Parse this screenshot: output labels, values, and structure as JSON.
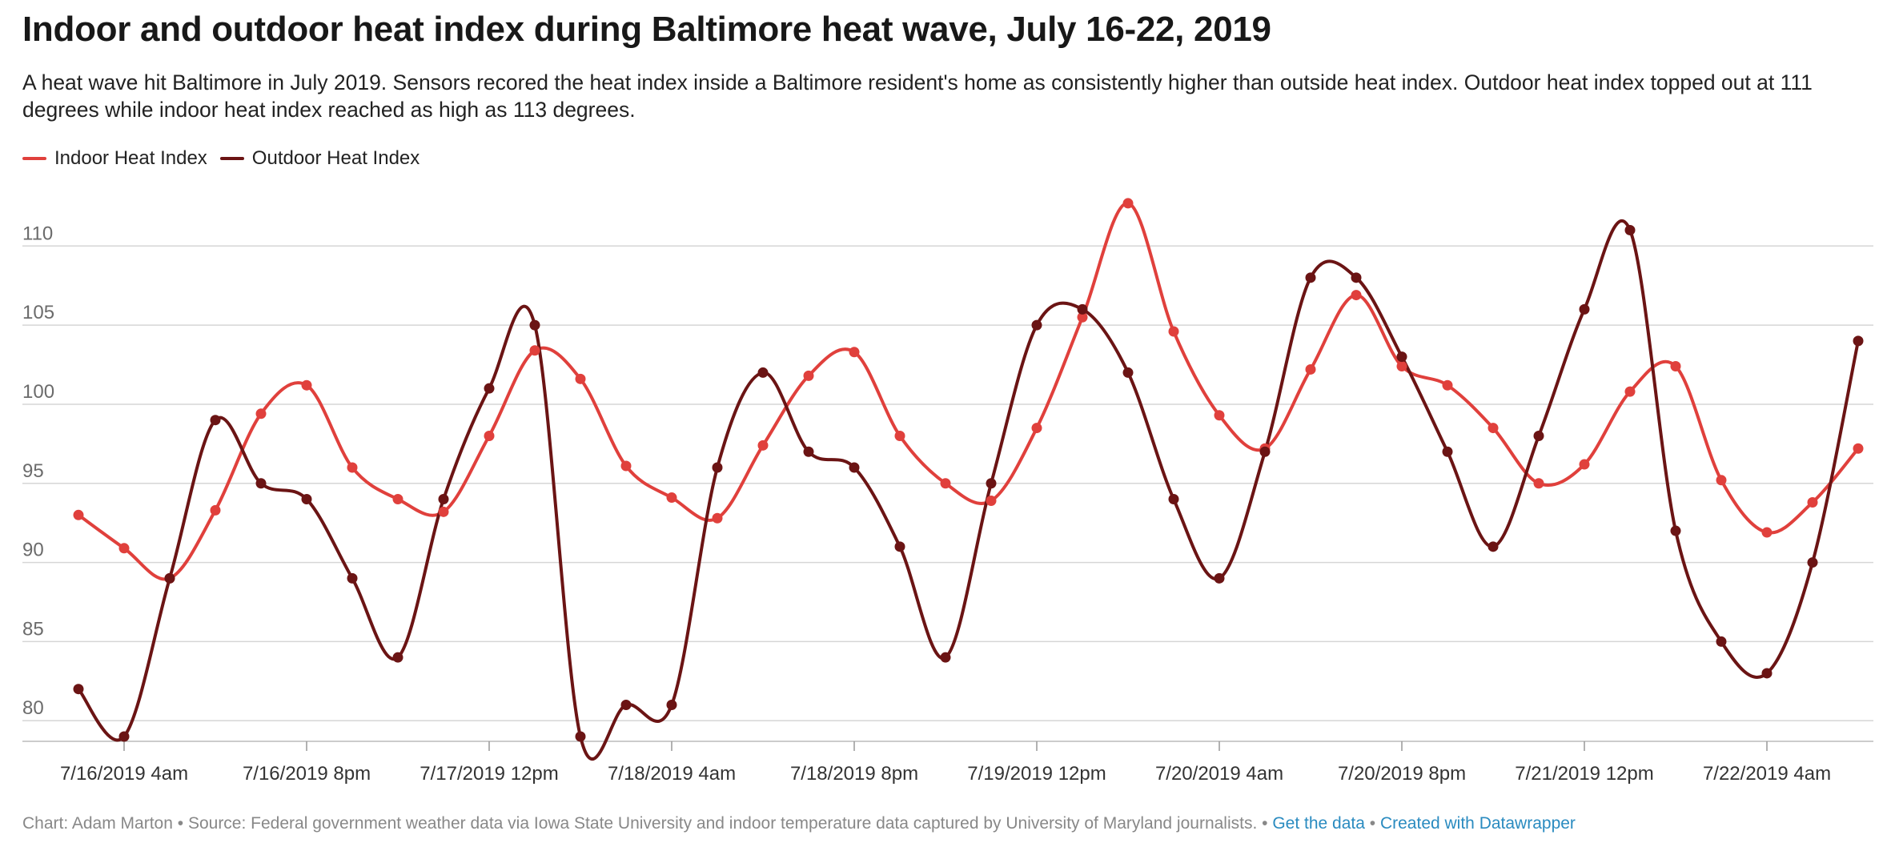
{
  "title": "Indoor and outdoor heat index during Baltimore heat wave, July 16-22, 2019",
  "subtitle": "A heat wave hit Baltimore in July 2019. Sensors recored the heat index inside a Baltimore resident's home as consistently higher than outside heat index. Outdoor heat index topped out at 111 degrees while indoor heat index reached as high as 113 degrees.",
  "footer": {
    "credit": "Chart: Adam Marton",
    "sep": " • ",
    "source": "Source: Federal government weather data via Iowa State University and indoor temperature data captured by University of Maryland journalists.",
    "get_data": "Get the data",
    "created": "Created with Datawrapper"
  },
  "colors": {
    "indoor": "#e0403c",
    "outdoor": "#6b1414",
    "grid": "#d6d6d6",
    "link": "#2a8bc0"
  },
  "chart_data": {
    "type": "line",
    "title": "Indoor and outdoor heat index during Baltimore heat wave, July 16-22, 2019",
    "xlabel": "",
    "ylabel": "",
    "ylim": [
      79,
      113
    ],
    "yticks": [
      80,
      85,
      90,
      95,
      100,
      105,
      110
    ],
    "grid": true,
    "legend": "top-left",
    "x": [
      "7/16/2019 12am",
      "7/16/2019 4am",
      "7/16/2019 8am",
      "7/16/2019 12pm",
      "7/16/2019 4pm",
      "7/16/2019 8pm",
      "7/17/2019 12am",
      "7/17/2019 4am",
      "7/17/2019 8am",
      "7/17/2019 12pm",
      "7/17/2019 4pm",
      "7/17/2019 8pm",
      "7/18/2019 12am",
      "7/18/2019 4am",
      "7/18/2019 8am",
      "7/18/2019 12pm",
      "7/18/2019 4pm",
      "7/18/2019 8pm",
      "7/19/2019 12am",
      "7/19/2019 4am",
      "7/19/2019 8am",
      "7/19/2019 12pm",
      "7/19/2019 4pm",
      "7/19/2019 8pm",
      "7/20/2019 12am",
      "7/20/2019 4am",
      "7/20/2019 8am",
      "7/20/2019 12pm",
      "7/20/2019 4pm",
      "7/20/2019 8pm",
      "7/21/2019 12am",
      "7/21/2019 4am",
      "7/21/2019 8am",
      "7/21/2019 12pm",
      "7/21/2019 4pm",
      "7/21/2019 8pm",
      "7/22/2019 12am",
      "7/22/2019 4am",
      "7/22/2019 8am",
      "7/22/2019 12pm"
    ],
    "xtick_labels": [
      {
        "x": "7/16/2019 4am",
        "label": "7/16/2019 4am"
      },
      {
        "x": "7/16/2019 8pm",
        "label": "7/16/2019 8pm"
      },
      {
        "x": "7/17/2019 12pm",
        "label": "7/17/2019 12pm"
      },
      {
        "x": "7/18/2019 4am",
        "label": "7/18/2019 4am"
      },
      {
        "x": "7/18/2019 8pm",
        "label": "7/18/2019 8pm"
      },
      {
        "x": "7/19/2019 12pm",
        "label": "7/19/2019 12pm"
      },
      {
        "x": "7/20/2019 4am",
        "label": "7/20/2019 4am"
      },
      {
        "x": "7/20/2019 8pm",
        "label": "7/20/2019 8pm"
      },
      {
        "x": "7/21/2019 12pm",
        "label": "7/21/2019 12pm"
      },
      {
        "x": "7/22/2019 4am",
        "label": "7/22/2019 4am"
      }
    ],
    "series": [
      {
        "name": "Indoor Heat Index",
        "color": "#e0403c",
        "points": [
          {
            "x": "7/16/2019 12am",
            "y": 93
          },
          {
            "x": "7/16/2019 4am",
            "y": 90.9
          },
          {
            "x": "7/16/2019 8am",
            "y": 89
          },
          {
            "x": "7/16/2019 12pm",
            "y": 93.3
          },
          {
            "x": "7/16/2019 4pm",
            "y": 99.4
          },
          {
            "x": "7/16/2019 8pm",
            "y": 101.2
          },
          {
            "x": "7/17/2019 12am",
            "y": 96
          },
          {
            "x": "7/17/2019 4am",
            "y": 94
          },
          {
            "x": "7/17/2019 8am",
            "y": 93.2
          },
          {
            "x": "7/17/2019 12pm",
            "y": 98
          },
          {
            "x": "7/17/2019 4pm",
            "y": 103.4
          },
          {
            "x": "7/17/2019 8pm",
            "y": 101.6
          },
          {
            "x": "7/18/2019 12am",
            "y": 96.1
          },
          {
            "x": "7/18/2019 4am",
            "y": 94.1
          },
          {
            "x": "7/18/2019 8am",
            "y": 92.8
          },
          {
            "x": "7/18/2019 12pm",
            "y": 97.4
          },
          {
            "x": "7/18/2019 4pm",
            "y": 101.8
          },
          {
            "x": "7/18/2019 8pm",
            "y": 103.3
          },
          {
            "x": "7/19/2019 12am",
            "y": 98
          },
          {
            "x": "7/19/2019 4am",
            "y": 95
          },
          {
            "x": "7/19/2019 8am",
            "y": 93.9
          },
          {
            "x": "7/19/2019 12pm",
            "y": 98.5
          },
          {
            "x": "7/19/2019 4pm",
            "y": 105.5
          },
          {
            "x": "7/19/2019 8pm",
            "y": 112.7
          },
          {
            "x": "7/20/2019 12am",
            "y": 104.6
          },
          {
            "x": "7/20/2019 4am",
            "y": 99.3
          },
          {
            "x": "7/20/2019 8am",
            "y": 97.2
          },
          {
            "x": "7/20/2019 12pm",
            "y": 102.2
          },
          {
            "x": "7/20/2019 4pm",
            "y": 106.9
          },
          {
            "x": "7/20/2019 8pm",
            "y": 102.4
          },
          {
            "x": "7/21/2019 12am",
            "y": 101.2
          },
          {
            "x": "7/21/2019 4am",
            "y": 98.5
          },
          {
            "x": "7/21/2019 8am",
            "y": 95
          },
          {
            "x": "7/21/2019 12pm",
            "y": 96.2
          },
          {
            "x": "7/21/2019 4pm",
            "y": 100.8
          },
          {
            "x": "7/21/2019 8pm",
            "y": 102.4
          },
          {
            "x": "7/22/2019 12am",
            "y": 95.2
          },
          {
            "x": "7/22/2019 4am",
            "y": 91.9
          },
          {
            "x": "7/22/2019 8am",
            "y": 93.8
          },
          {
            "x": "7/22/2019 12pm",
            "y": 97.2
          }
        ]
      },
      {
        "name": "Outdoor Heat Index",
        "color": "#6b1414",
        "points": [
          {
            "x": "7/16/2019 12am",
            "y": 82
          },
          {
            "x": "7/16/2019 4am",
            "y": 79
          },
          {
            "x": "7/16/2019 8am",
            "y": 89
          },
          {
            "x": "7/16/2019 12pm",
            "y": 99
          },
          {
            "x": "7/16/2019 4pm",
            "y": 95
          },
          {
            "x": "7/16/2019 8pm",
            "y": 94
          },
          {
            "x": "7/17/2019 12am",
            "y": 89
          },
          {
            "x": "7/17/2019 4am",
            "y": 84
          },
          {
            "x": "7/17/2019 8am",
            "y": 94
          },
          {
            "x": "7/17/2019 12pm",
            "y": 101
          },
          {
            "x": "7/17/2019 4pm",
            "y": 105
          },
          {
            "x": "7/17/2019 8pm",
            "y": 79
          },
          {
            "x": "7/18/2019 12am",
            "y": 81
          },
          {
            "x": "7/18/2019 4am",
            "y": 81
          },
          {
            "x": "7/18/2019 8am",
            "y": 96
          },
          {
            "x": "7/18/2019 12pm",
            "y": 102
          },
          {
            "x": "7/18/2019 4pm",
            "y": 97
          },
          {
            "x": "7/18/2019 8pm",
            "y": 96
          },
          {
            "x": "7/19/2019 12am",
            "y": 91
          },
          {
            "x": "7/19/2019 4am",
            "y": 84
          },
          {
            "x": "7/19/2019 8am",
            "y": 95
          },
          {
            "x": "7/19/2019 12pm",
            "y": 105
          },
          {
            "x": "7/19/2019 4pm",
            "y": 106
          },
          {
            "x": "7/19/2019 8pm",
            "y": 102
          },
          {
            "x": "7/20/2019 12am",
            "y": 94
          },
          {
            "x": "7/20/2019 4am",
            "y": 89
          },
          {
            "x": "7/20/2019 8am",
            "y": 97
          },
          {
            "x": "7/20/2019 12pm",
            "y": 108
          },
          {
            "x": "7/20/2019 4pm",
            "y": 108
          },
          {
            "x": "7/20/2019 8pm",
            "y": 103
          },
          {
            "x": "7/21/2019 12am",
            "y": 97
          },
          {
            "x": "7/21/2019 4am",
            "y": 91
          },
          {
            "x": "7/21/2019 8am",
            "y": 98
          },
          {
            "x": "7/21/2019 12pm",
            "y": 106
          },
          {
            "x": "7/21/2019 4pm",
            "y": 111
          },
          {
            "x": "7/21/2019 8pm",
            "y": 92
          },
          {
            "x": "7/22/2019 12am",
            "y": 85
          },
          {
            "x": "7/22/2019 4am",
            "y": 83
          },
          {
            "x": "7/22/2019 8am",
            "y": 90
          },
          {
            "x": "7/22/2019 12pm",
            "y": 104
          }
        ]
      }
    ]
  }
}
